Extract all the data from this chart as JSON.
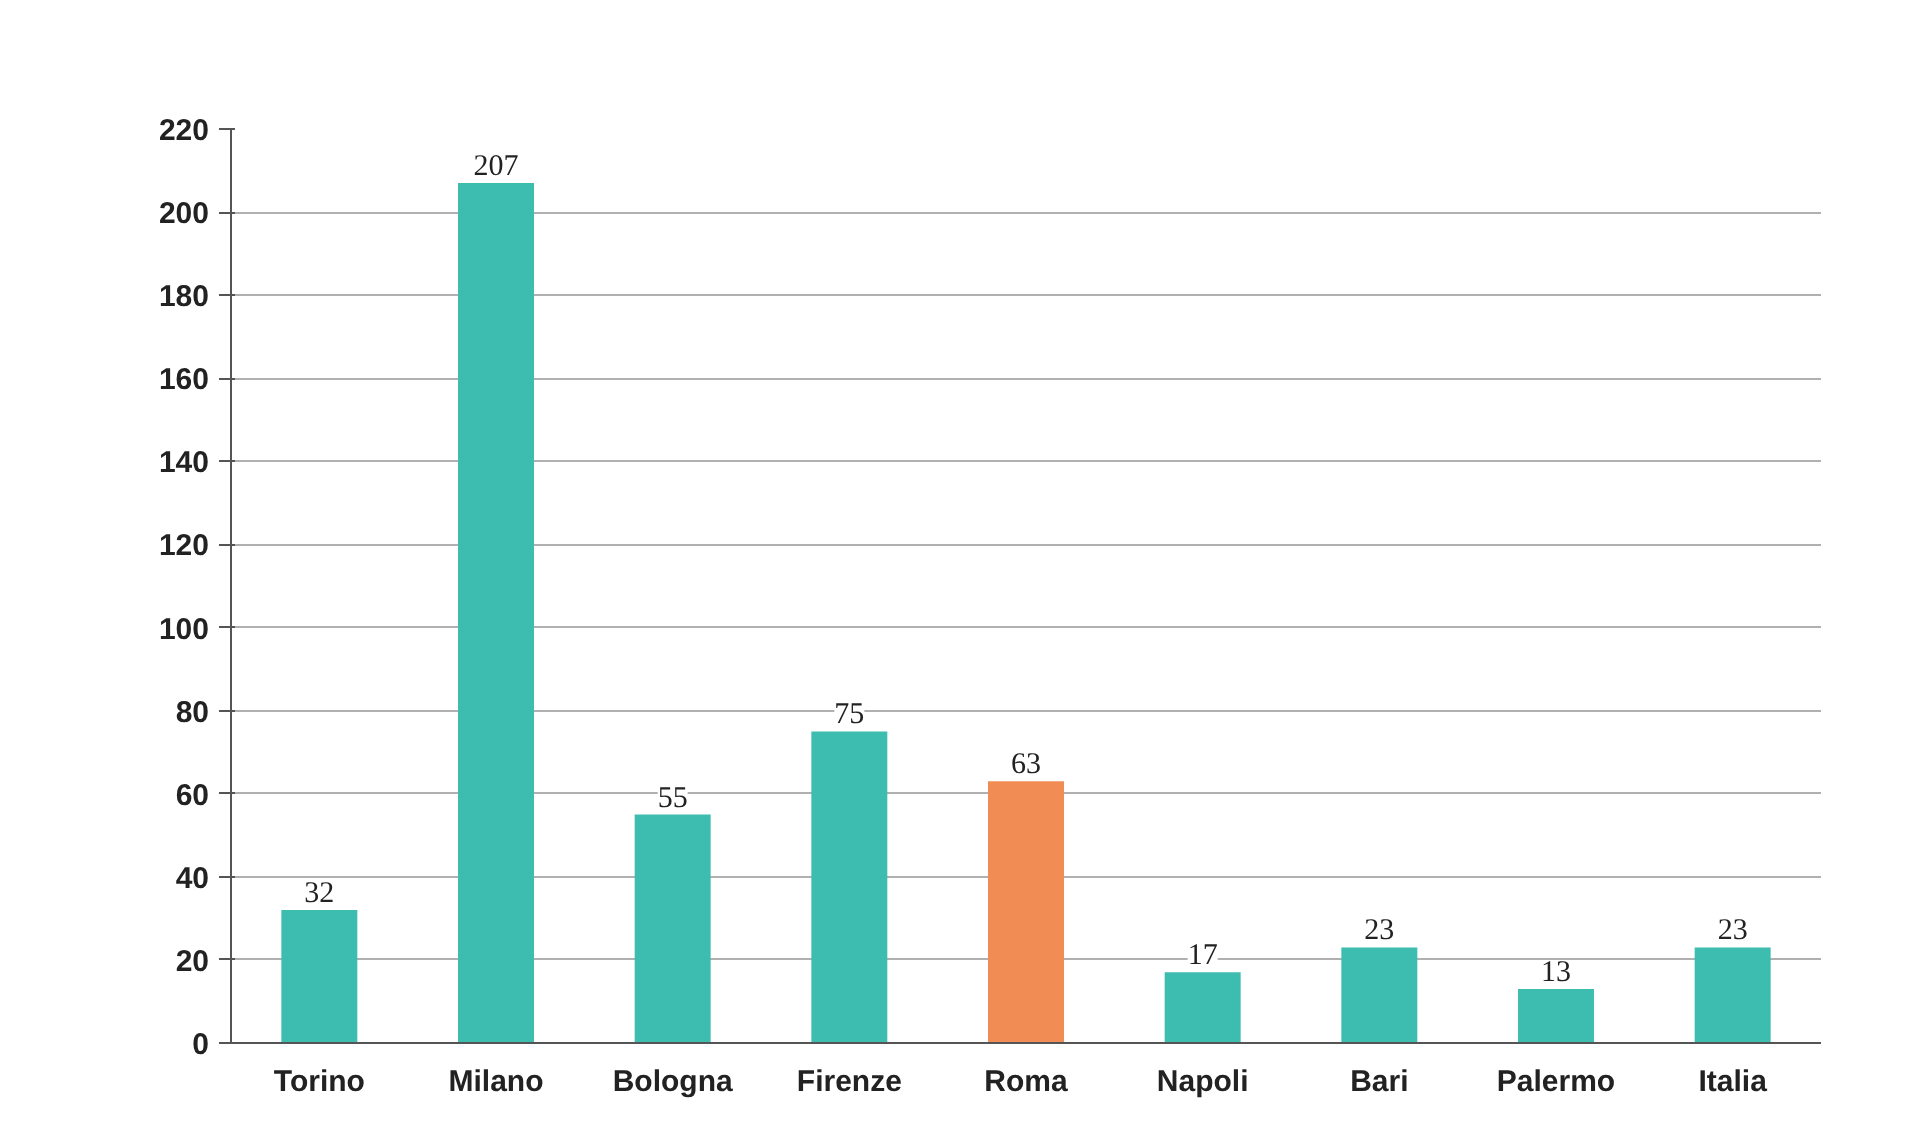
{
  "chart_data": {
    "type": "bar",
    "categories": [
      "Torino",
      "Milano",
      "Bologna",
      "Firenze",
      "Roma",
      "Napoli",
      "Bari",
      "Palermo",
      "Italia"
    ],
    "values": [
      32,
      207,
      55,
      75,
      63,
      17,
      23,
      13,
      23
    ],
    "colors": [
      "#3dbdb0",
      "#3dbdb0",
      "#3dbdb0",
      "#3dbdb0",
      "#f08c54",
      "#3dbdb0",
      "#3dbdb0",
      "#3dbdb0",
      "#3dbdb0"
    ],
    "ylim": [
      0,
      220
    ],
    "yticks": [
      0,
      20,
      40,
      60,
      80,
      100,
      120,
      140,
      160,
      180,
      200,
      220
    ],
    "grid": "y",
    "data_labels": true
  }
}
